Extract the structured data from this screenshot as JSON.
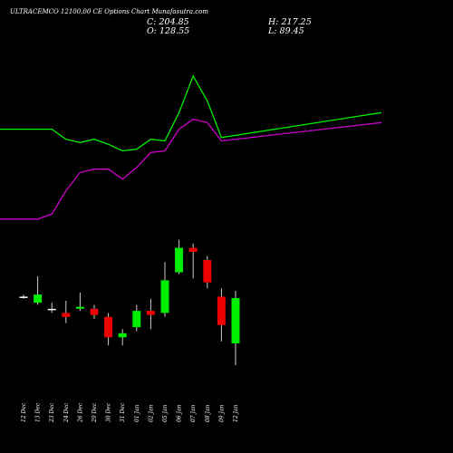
{
  "chart_data": {
    "type": "candlestick",
    "title": "ULTRACEMCO 12100.00 CE Options Chart Munafasutra.com",
    "ohlc_labels": {
      "close": "C: 204.85",
      "high": "H: 217.25",
      "open": "O: 128.55",
      "low": "L: 89.45"
    },
    "categories": [
      "12 Dec",
      "13 Dec",
      "23 Dec",
      "24 Dec",
      "26 Dec",
      "29 Dec",
      "30 Dec",
      "31 Dec",
      "01 Jan",
      "02 Jan",
      "05 Jan",
      "06 Jan",
      "07 Jan",
      "08 Jan",
      "09 Jan",
      "12 Jan"
    ],
    "candles": [
      {
        "o": 120,
        "h": 121,
        "l": 119,
        "c": 120
      },
      {
        "o": 117,
        "h": 130,
        "l": 116,
        "c": 121
      },
      {
        "o": 114,
        "h": 117,
        "l": 112,
        "c": 114
      },
      {
        "o": 112,
        "h": 118,
        "l": 107,
        "c": 110
      },
      {
        "o": 114,
        "h": 122,
        "l": 113,
        "c": 115
      },
      {
        "o": 114,
        "h": 116,
        "l": 109,
        "c": 111
      },
      {
        "o": 110,
        "h": 112,
        "l": 96,
        "c": 100
      },
      {
        "o": 100,
        "h": 104,
        "l": 96,
        "c": 102
      },
      {
        "o": 105,
        "h": 116,
        "l": 103,
        "c": 113
      },
      {
        "o": 113,
        "h": 119,
        "l": 104,
        "c": 111
      },
      {
        "o": 112,
        "h": 137,
        "l": 110,
        "c": 128
      },
      {
        "o": 132,
        "h": 148,
        "l": 131,
        "c": 144
      },
      {
        "o": 144,
        "h": 146,
        "l": 129,
        "c": 142
      },
      {
        "o": 138,
        "h": 140,
        "l": 124,
        "c": 127
      },
      {
        "o": 120,
        "h": 124,
        "l": 98,
        "c": 106
      },
      {
        "o": 128.55,
        "h": 217.25,
        "l": 89.45,
        "c": 204.85
      }
    ],
    "upper_band": [
      245,
      245,
      245,
      239,
      237,
      239,
      236,
      232,
      233,
      239,
      238,
      255,
      277,
      262,
      240,
      255
    ],
    "lower_band": [
      191,
      191,
      194,
      208,
      219,
      221,
      221,
      215,
      222,
      231,
      232,
      245,
      251,
      249,
      238,
      249
    ],
    "colors": {
      "background": "#000000",
      "up": "#00ee00",
      "down": "#ee0000",
      "neutral": "#ffffff",
      "upper_band": "#00ee00",
      "lower_band": "#cc00cc",
      "text": "#ffffff"
    }
  }
}
